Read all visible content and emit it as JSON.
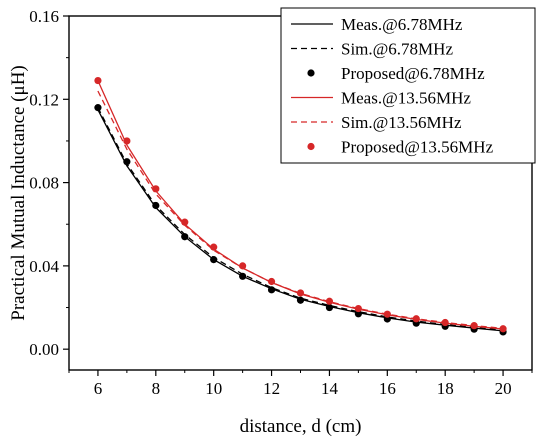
{
  "chart_data": {
    "type": "line",
    "xlabel": "distance, d (cm)",
    "ylabel": "Practical Mutual Inductance (μH)",
    "xlim": [
      5,
      21
    ],
    "ylim": [
      -0.01,
      0.16
    ],
    "x_ticks": [
      6,
      8,
      10,
      12,
      14,
      16,
      18,
      20
    ],
    "x_tick_labels": [
      "6",
      "8",
      "10",
      "12",
      "14",
      "16",
      "18",
      "20"
    ],
    "y_ticks": [
      0.0,
      0.04,
      0.08,
      0.12,
      0.16
    ],
    "y_tick_labels": [
      "0.00",
      "0.04",
      "0.08",
      "0.12",
      "0.16"
    ],
    "grid": false,
    "legend_position": "top-right",
    "x": [
      6,
      7,
      8,
      9,
      10,
      11,
      12,
      13,
      14,
      15,
      16,
      17,
      18,
      19,
      20
    ],
    "series": [
      {
        "name": "Meas.@6.78MHz",
        "style": "solid-line",
        "color": "#000000",
        "values": [
          0.115,
          0.088,
          0.068,
          0.054,
          0.043,
          0.035,
          0.029,
          0.024,
          0.0205,
          0.0175,
          0.015,
          0.013,
          0.0115,
          0.0101,
          0.0088
        ]
      },
      {
        "name": "Sim.@6.78MHz",
        "style": "dashed-line",
        "color": "#000000",
        "values": [
          0.116,
          0.089,
          0.069,
          0.055,
          0.044,
          0.036,
          0.0295,
          0.0245,
          0.021,
          0.018,
          0.0155,
          0.0135,
          0.0118,
          0.0104,
          0.0092
        ]
      },
      {
        "name": "Proposed@6.78MHz",
        "style": "markers",
        "color": "#000000",
        "values": [
          0.116,
          0.09,
          0.069,
          0.054,
          0.043,
          0.035,
          0.0285,
          0.0235,
          0.02,
          0.017,
          0.0145,
          0.0125,
          0.011,
          0.0096,
          0.0083
        ]
      },
      {
        "name": "Meas.@13.56MHz",
        "style": "solid-line",
        "color": "#d62728",
        "values": [
          0.129,
          0.098,
          0.076,
          0.06,
          0.048,
          0.039,
          0.032,
          0.0265,
          0.0225,
          0.0192,
          0.0165,
          0.0143,
          0.0125,
          0.011,
          0.0097
        ]
      },
      {
        "name": "Sim.@13.56MHz",
        "style": "dashed-line",
        "color": "#d62728",
        "values": [
          0.124,
          0.096,
          0.0745,
          0.0595,
          0.0475,
          0.039,
          0.032,
          0.0268,
          0.0228,
          0.0195,
          0.0168,
          0.0146,
          0.0128,
          0.0113,
          0.01
        ]
      },
      {
        "name": "Proposed@13.56MHz",
        "style": "markers",
        "color": "#d62728",
        "values": [
          0.129,
          0.1,
          0.077,
          0.061,
          0.049,
          0.04,
          0.0325,
          0.027,
          0.023,
          0.0195,
          0.0168,
          0.0146,
          0.0128,
          0.0113,
          0.0098
        ]
      }
    ]
  }
}
